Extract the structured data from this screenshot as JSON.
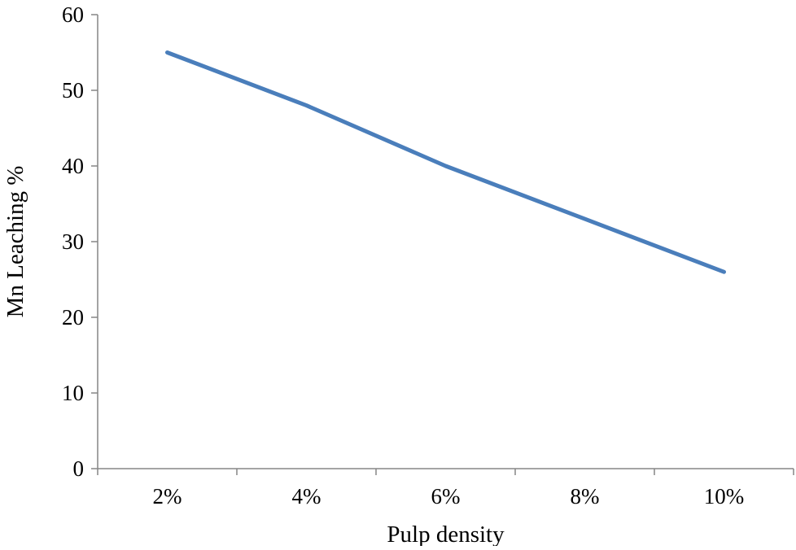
{
  "chart_data": {
    "type": "line",
    "categories": [
      "2%",
      "4%",
      "6%",
      "8%",
      "10%"
    ],
    "series": [
      {
        "values": [
          55,
          48,
          40,
          33,
          26
        ]
      }
    ],
    "xlabel": "Pulp density",
    "ylabel": "Mn Leaching %",
    "ylim": [
      0,
      60
    ],
    "yticks": [
      "0",
      "10",
      "20",
      "30",
      "40",
      "50",
      "60"
    ],
    "grid": false,
    "colors": {
      "series_line": "#4a7ebb",
      "axis": "#868686"
    }
  }
}
